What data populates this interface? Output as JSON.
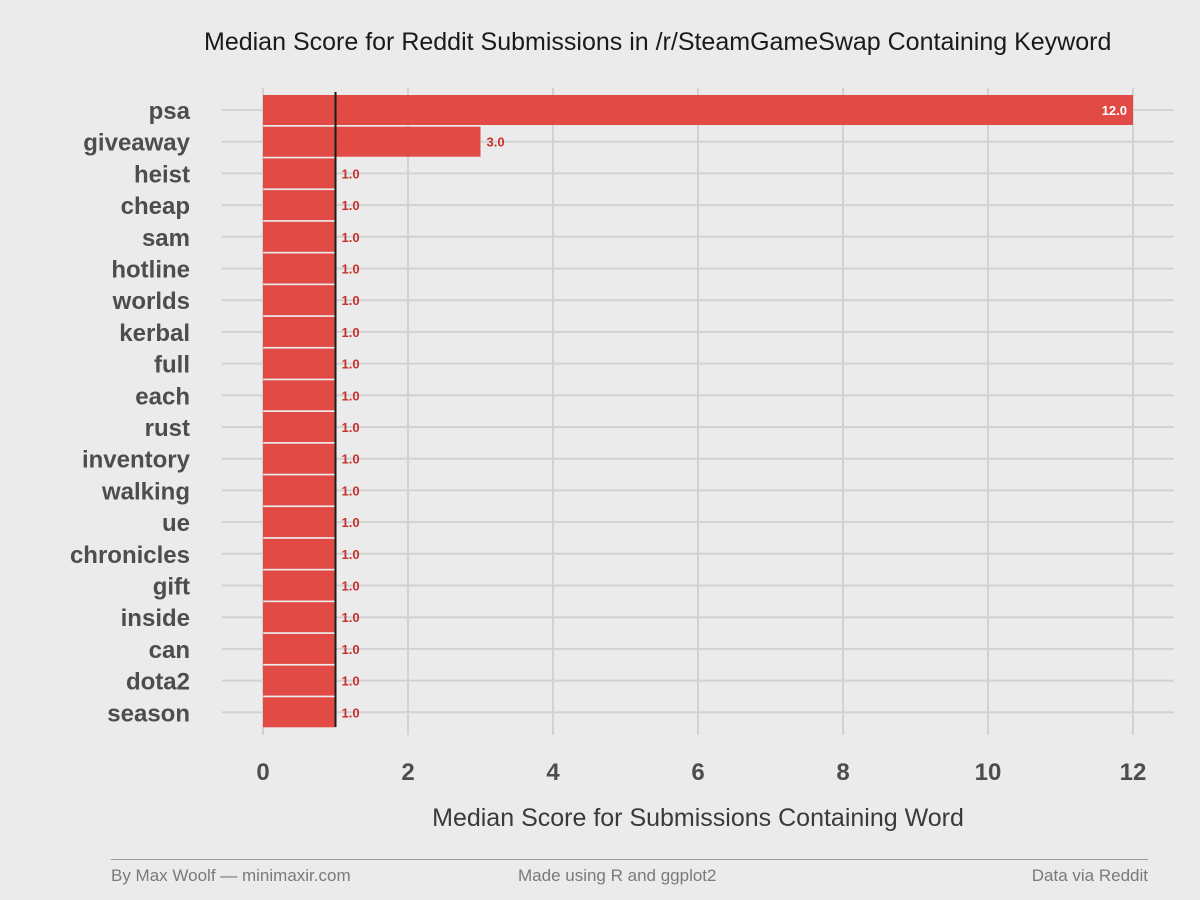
{
  "chart_data": {
    "type": "bar",
    "orientation": "horizontal",
    "title": "Median Score for Reddit Submissions in /r/SteamGameSwap Containing Keyword",
    "xlabel": "Median Score for Submissions Containing Word",
    "ylabel": "",
    "xlim": [
      0,
      12
    ],
    "xticks": [
      0,
      2,
      4,
      6,
      8,
      10,
      12
    ],
    "reference_line": 1,
    "categories": [
      "psa",
      "giveaway",
      "heist",
      "cheap",
      "sam",
      "hotline",
      "worlds",
      "kerbal",
      "full",
      "each",
      "rust",
      "inventory",
      "walking",
      "ue",
      "chronicles",
      "gift",
      "inside",
      "can",
      "dota2",
      "season"
    ],
    "values": [
      12,
      3,
      1,
      1,
      1,
      1,
      1,
      1,
      1,
      1,
      1,
      1,
      1,
      1,
      1,
      1,
      1,
      1,
      1,
      1
    ],
    "labels": [
      "12.0",
      "3.0",
      "1.0",
      "1.0",
      "1.0",
      "1.0",
      "1.0",
      "1.0",
      "1.0",
      "1.0",
      "1.0",
      "1.0",
      "1.0",
      "1.0",
      "1.0",
      "1.0",
      "1.0",
      "1.0",
      "1.0",
      "1.0"
    ],
    "bar_color": "#e0413c",
    "grid": true,
    "legend": "none"
  },
  "footer": {
    "left": "By Max Woolf — minimaxir.com",
    "middle": "Made using R and ggplot2",
    "right": "Data via Reddit"
  }
}
